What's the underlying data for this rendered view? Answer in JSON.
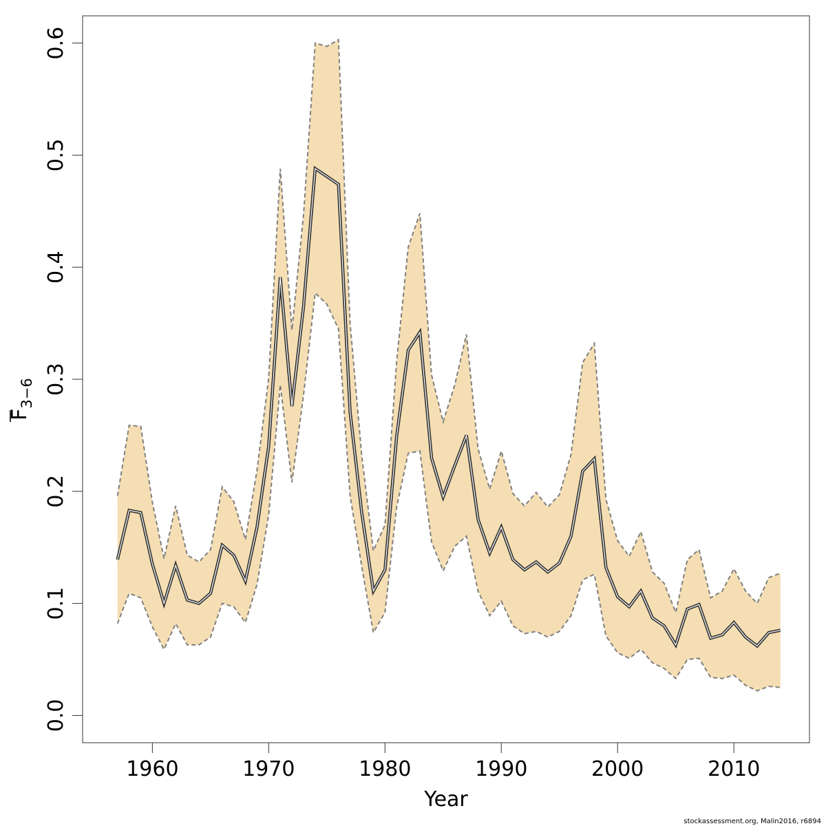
{
  "chart_data": {
    "type": "line",
    "title": "",
    "xlabel": "Year",
    "ylabel": "F",
    "ylabel_subscript": "3−6",
    "xlim": [
      1954,
      2016.5
    ],
    "ylim": [
      -0.0243,
      0.6243
    ],
    "xticks": [
      1960,
      1970,
      1980,
      1990,
      2000,
      2010
    ],
    "yticks": [
      0.0,
      0.1,
      0.2,
      0.3,
      0.4,
      0.5,
      0.6
    ],
    "ytick_labels": [
      "0.0",
      "0.1",
      "0.2",
      "0.3",
      "0.4",
      "0.5",
      "0.6"
    ],
    "xtick_labels": [
      "1960",
      "1970",
      "1980",
      "1990",
      "2000",
      "2010"
    ],
    "x": [
      1957,
      1958,
      1959,
      1960,
      1961,
      1962,
      1963,
      1964,
      1965,
      1966,
      1967,
      1968,
      1969,
      1970,
      1971,
      1972,
      1973,
      1974,
      1975,
      1976,
      1977,
      1978,
      1979,
      1980,
      1981,
      1982,
      1983,
      1984,
      1985,
      1986,
      1987,
      1988,
      1989,
      1990,
      1991,
      1992,
      1993,
      1994,
      1995,
      1996,
      1997,
      1998,
      1999,
      2000,
      2001,
      2002,
      2003,
      2004,
      2005,
      2006,
      2007,
      2008,
      2009,
      2010,
      2011,
      2012,
      2013,
      2014
    ],
    "series": [
      {
        "name": "estimate",
        "values": [
          0.139,
          0.183,
          0.181,
          0.135,
          0.1,
          0.134,
          0.103,
          0.1,
          0.109,
          0.152,
          0.143,
          0.12,
          0.168,
          0.24,
          0.391,
          0.276,
          0.365,
          0.488,
          0.481,
          0.474,
          0.271,
          0.181,
          0.111,
          0.13,
          0.249,
          0.326,
          0.342,
          0.23,
          0.195,
          0.223,
          0.25,
          0.175,
          0.145,
          0.168,
          0.139,
          0.13,
          0.137,
          0.128,
          0.136,
          0.16,
          0.218,
          0.229,
          0.132,
          0.106,
          0.097,
          0.111,
          0.087,
          0.08,
          0.063,
          0.095,
          0.099,
          0.069,
          0.072,
          0.083,
          0.07,
          0.062,
          0.074,
          0.076
        ]
      },
      {
        "name": "upper",
        "values": [
          0.196,
          0.259,
          0.258,
          0.19,
          0.14,
          0.187,
          0.143,
          0.137,
          0.148,
          0.204,
          0.191,
          0.157,
          0.219,
          0.301,
          0.488,
          0.344,
          0.447,
          0.6,
          0.597,
          0.603,
          0.35,
          0.232,
          0.147,
          0.17,
          0.316,
          0.418,
          0.448,
          0.304,
          0.262,
          0.295,
          0.34,
          0.238,
          0.202,
          0.236,
          0.198,
          0.187,
          0.199,
          0.186,
          0.197,
          0.233,
          0.315,
          0.332,
          0.193,
          0.156,
          0.142,
          0.164,
          0.128,
          0.118,
          0.092,
          0.139,
          0.148,
          0.105,
          0.111,
          0.131,
          0.111,
          0.1,
          0.123,
          0.127
        ]
      },
      {
        "name": "lower",
        "values": [
          0.082,
          0.109,
          0.105,
          0.079,
          0.059,
          0.082,
          0.063,
          0.063,
          0.07,
          0.1,
          0.097,
          0.083,
          0.117,
          0.179,
          0.295,
          0.208,
          0.286,
          0.377,
          0.367,
          0.345,
          0.196,
          0.133,
          0.074,
          0.092,
          0.186,
          0.234,
          0.236,
          0.155,
          0.129,
          0.151,
          0.16,
          0.111,
          0.089,
          0.102,
          0.08,
          0.073,
          0.075,
          0.07,
          0.075,
          0.089,
          0.121,
          0.126,
          0.071,
          0.056,
          0.051,
          0.059,
          0.047,
          0.042,
          0.033,
          0.05,
          0.051,
          0.034,
          0.033,
          0.036,
          0.027,
          0.022,
          0.026,
          0.025
        ]
      }
    ],
    "band_color": "#F5DEB3",
    "band_edge_color": "#7f7f7f",
    "line_color": "#333333"
  },
  "credit": "stockassessment.org, Malin2016, r6894"
}
